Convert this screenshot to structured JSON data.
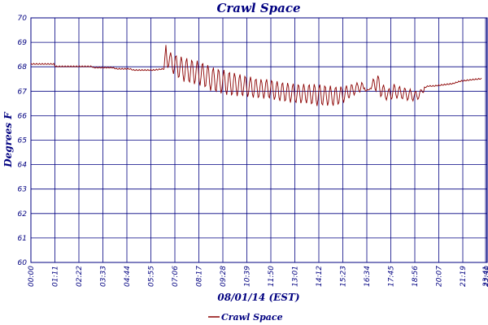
{
  "chart_data": {
    "type": "line",
    "title": "Crawl Space",
    "xlabel": "08/01/14 (EST)",
    "ylabel": "Degrees F",
    "ylim": [
      60,
      70
    ],
    "y_ticks": [
      60,
      61,
      62,
      63,
      64,
      65,
      66,
      67,
      68,
      69,
      70
    ],
    "x_tick_labels": [
      "00:00",
      "01:11",
      "02:22",
      "03:33",
      "04:44",
      "05:55",
      "07:06",
      "08:17",
      "09:28",
      "10:39",
      "11:50",
      "13:01",
      "14:12",
      "15:23",
      "16:34",
      "17:45",
      "18:56",
      "20:07",
      "21:19",
      "22:30",
      "23:41",
      "23:41"
    ],
    "grid": true,
    "legend": "bottom-center",
    "colors": {
      "grid": "#000080",
      "axis": "#000080",
      "series": "#8b0000"
    },
    "series": [
      {
        "name": "Crawl Space",
        "x_unit": "hours",
        "x": [
          0,
          1.2,
          1.3,
          2.3,
          2.4,
          3.2,
          3.3,
          4.3,
          4.5,
          5.2,
          5.4,
          6.4,
          7.0,
          7.1,
          7.3,
          7.6,
          8.0,
          8.5,
          9.0,
          9.5,
          10.0,
          10.5,
          11.0,
          11.5,
          12.0,
          12.5,
          13.0,
          13.5,
          14.0,
          14.5,
          15.0,
          15.5,
          16.0,
          16.4,
          16.9,
          17.4,
          17.6,
          17.9,
          18.1,
          18.5,
          18.8,
          19.1,
          19.4,
          19.9,
          20.3,
          20.6,
          20.9,
          21.2,
          21.7,
          22.2,
          22.6,
          23.1,
          23.7
        ],
        "y": [
          68.1,
          68.1,
          68.0,
          68.0,
          68.0,
          68.0,
          67.95,
          67.95,
          67.9,
          67.9,
          67.85,
          67.85,
          67.9,
          69.0,
          68.6,
          68.5,
          68.4,
          68.3,
          68.2,
          68.0,
          67.9,
          67.8,
          67.7,
          67.6,
          67.5,
          67.5,
          67.4,
          67.35,
          67.3,
          67.3,
          67.3,
          67.25,
          67.2,
          67.2,
          67.3,
          67.4,
          67.0,
          67.1,
          67.9,
          67.3,
          67.1,
          67.3,
          67.2,
          67.1,
          67.0,
          67.1,
          67.2,
          67.2,
          67.25,
          67.3,
          67.4,
          67.45,
          67.5
        ],
        "low": [
          68.1,
          68.1,
          68.0,
          68.0,
          68.0,
          68.0,
          67.95,
          67.95,
          67.9,
          67.9,
          67.85,
          67.85,
          67.9,
          68.0,
          67.9,
          67.6,
          67.4,
          67.3,
          67.2,
          67.0,
          66.9,
          66.8,
          66.8,
          66.75,
          66.7,
          66.7,
          66.6,
          66.55,
          66.5,
          66.5,
          66.4,
          66.4,
          66.4,
          66.5,
          66.8,
          67.0,
          67.0,
          67.1,
          67.0,
          66.7,
          66.6,
          66.7,
          66.7,
          66.6,
          66.6,
          66.9,
          67.2,
          67.2,
          67.25,
          67.3,
          67.4,
          67.45,
          67.5
        ]
      }
    ]
  }
}
